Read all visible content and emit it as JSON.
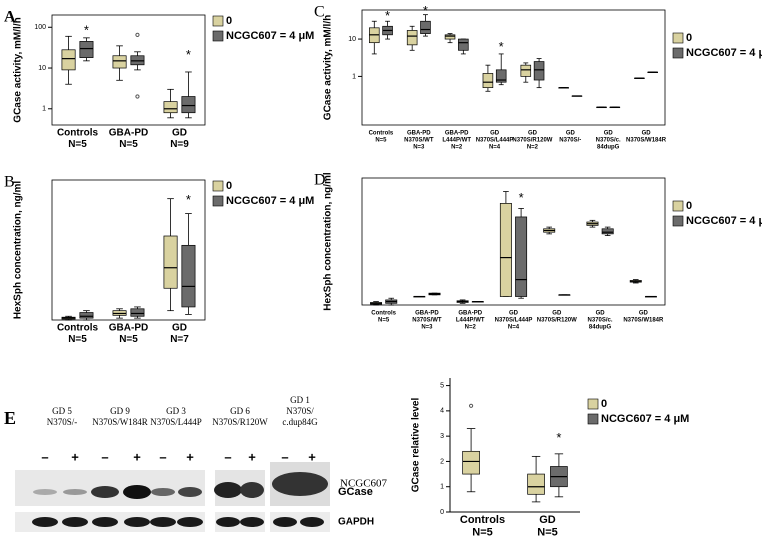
{
  "chart_data": [
    {
      "type": "box",
      "label": "A",
      "y_label": "GCase activity, mM/l/h",
      "log": true,
      "frame": true,
      "legend": "right",
      "ylim": [
        0.4,
        200
      ],
      "yticks": [
        1,
        10,
        100
      ],
      "categories": [
        [
          "Controls",
          "N=5"
        ],
        [
          "GBA-PD",
          "N=5"
        ],
        [
          "GD",
          "N=9"
        ]
      ],
      "series": [
        {
          "name": "0",
          "color": "#d9d2a0",
          "values": [
            [
              4,
              9,
              17,
              28,
              60
            ],
            [
              5,
              10,
              15,
              20,
              35
            ],
            [
              0.6,
              0.8,
              1,
              1.5,
              3
            ]
          ]
        },
        {
          "name": "NCGC607 = 4 μM",
          "color": "#6b6b6b",
          "values": [
            [
              15,
              18,
              30,
              45,
              55
            ],
            [
              9,
              12,
              15,
              20,
              25
            ],
            [
              0.6,
              0.8,
              1.2,
              2,
              8
            ]
          ],
          "outliers": [
            [],
            [
              65,
              2
            ],
            []
          ]
        }
      ],
      "annotations": [
        {
          "text": "*",
          "x": 0,
          "series": 1,
          "y": 80
        },
        {
          "text": "*",
          "x": 2,
          "series": 1,
          "y": 20
        }
      ]
    },
    {
      "type": "box",
      "label": "B",
      "y_label": "HexSph concentration, ng/ml",
      "log": false,
      "frame": true,
      "legend": "right",
      "ylim": [
        0,
        75
      ],
      "categories": [
        [
          "Controls",
          "N=5"
        ],
        [
          "GBA-PD",
          "N=5"
        ],
        [
          "GD",
          "N=7"
        ]
      ],
      "series": [
        {
          "name": "0",
          "color": "#d9d2a0",
          "values": [
            [
              0,
              0.5,
              1,
              1.5,
              2
            ],
            [
              1,
              2.5,
              3.5,
              5,
              6
            ],
            [
              5,
              17,
              28,
              45,
              65
            ]
          ]
        },
        {
          "name": "NCGC607 = 4 μM",
          "color": "#6b6b6b",
          "values": [
            [
              0,
              1,
              2,
              4,
              5
            ],
            [
              1,
              2,
              3.5,
              6,
              7
            ],
            [
              3,
              7,
              18,
              40,
              57
            ]
          ]
        }
      ],
      "annotations": [
        {
          "text": "*",
          "x": 2,
          "series": 1,
          "y": 64
        }
      ]
    },
    {
      "type": "box",
      "label": "C",
      "y_label": "GCase activity, mM/l/h",
      "log": true,
      "frame": true,
      "legend": "right",
      "ylim": [
        0.05,
        60
      ],
      "yticks": [
        1,
        10
      ],
      "categories": [
        [
          "Controls",
          "N=5"
        ],
        [
          "GBA-PD",
          "N370S/WT",
          "N=3"
        ],
        [
          "GBA-PD",
          "L444P/WT",
          "N=2"
        ],
        [
          "GD",
          "N370S/L444P",
          "N=4"
        ],
        [
          "GD",
          "N370S/R120W",
          "N=2"
        ],
        [
          "GD",
          "N370S/-"
        ],
        [
          "GD",
          "N370S/c.",
          "84dupG"
        ],
        [
          "GD",
          "N370S/W184R"
        ]
      ],
      "series": [
        {
          "name": "0",
          "color": "#d9d2a0",
          "values": [
            [
              4,
              8,
              13,
              20,
              30
            ],
            [
              5,
              7,
              12,
              17,
              22
            ],
            [
              8,
              10,
              12,
              13,
              14
            ],
            [
              0.4,
              0.5,
              0.7,
              1.2,
              2
            ],
            [
              0.7,
              1,
              1.5,
              2,
              2.3
            ],
            [
              0.5,
              0.5,
              0.5,
              0.5,
              0.5
            ],
            [
              0.15,
              0.15,
              0.15,
              0.15,
              0.15
            ],
            [
              0.9,
              0.9,
              0.9,
              0.9,
              0.9
            ]
          ]
        },
        {
          "name": "NCGC607 = 4 μM",
          "color": "#6b6b6b",
          "values": [
            [
              10,
              13,
              17,
              22,
              30
            ],
            [
              12,
              14,
              18,
              30,
              45
            ],
            [
              4,
              5,
              8,
              10,
              10
            ],
            [
              0.6,
              0.7,
              0.8,
              1.5,
              4
            ],
            [
              0.5,
              0.8,
              1.5,
              2.5,
              3
            ],
            [
              0.3,
              0.3,
              0.3,
              0.3,
              0.3
            ],
            [
              0.15,
              0.15,
              0.15,
              0.15,
              0.15
            ],
            [
              1.3,
              1.3,
              1.3,
              1.3,
              1.3
            ]
          ]
        }
      ],
      "annotations": [
        {
          "text": "*",
          "x": 0,
          "series": 1,
          "y": 40
        },
        {
          "text": "*",
          "x": 1,
          "series": 1,
          "y": 55
        },
        {
          "text": "*",
          "x": 3,
          "series": 1,
          "y": 6
        }
      ]
    },
    {
      "type": "box",
      "label": "D",
      "y_label": "HexSph concentration, ng/ml",
      "log": false,
      "frame": true,
      "legend": "right",
      "ylim": [
        0,
        75
      ],
      "categories": [
        [
          "Controls",
          "N=5"
        ],
        [
          "GBA-PD",
          "N370S/WT",
          "N=3"
        ],
        [
          "GBA-PD",
          "L444P/WT",
          "N=2"
        ],
        [
          "GD",
          "N370S/L444P",
          "N=4"
        ],
        [
          "GD",
          "N370S/R120W"
        ],
        [
          "GD",
          "N370S/c.",
          "84dupG"
        ],
        [
          "GD",
          "N370S/W184R"
        ]
      ],
      "series": [
        {
          "name": "0",
          "color": "#d9d2a0",
          "values": [
            [
              0,
              0.5,
              1,
              1.5,
              2
            ],
            [
              5,
              5,
              5,
              5,
              5
            ],
            [
              1,
              1.5,
              2,
              2.5,
              3
            ],
            [
              5,
              5,
              28,
              60,
              67
            ],
            [
              42,
              43,
              44,
              45,
              46
            ],
            [
              46,
              47,
              48,
              49,
              50
            ],
            [
              13,
              13.5,
              14,
              14.5,
              15
            ]
          ]
        },
        {
          "name": "NCGC607 = 4 μM",
          "color": "#6b6b6b",
          "values": [
            [
              0,
              1,
              2,
              3,
              4
            ],
            [
              6,
              6,
              6.5,
              7,
              7
            ],
            [
              2,
              2,
              2,
              2,
              2
            ],
            [
              4,
              5,
              15,
              52,
              57
            ],
            [
              6,
              6,
              6,
              6,
              6
            ],
            [
              41,
              42,
              43,
              45,
              46
            ],
            [
              5,
              5,
              5,
              5,
              5
            ]
          ]
        }
      ],
      "annotations": [
        {
          "text": "*",
          "x": 3,
          "series": 1,
          "y": 63
        }
      ]
    },
    {
      "type": "box",
      "y_label": "GCase relative level",
      "log": false,
      "frame": false,
      "legend": "right",
      "ylim": [
        0,
        5.3
      ],
      "yticks": [
        0,
        1,
        2,
        3,
        4,
        5
      ],
      "categories": [
        [
          "Controls",
          "N=5"
        ],
        [
          "GD",
          "N=5"
        ]
      ],
      "series": [
        {
          "name": "0",
          "color": "#d9d2a0",
          "values": [
            [
              0.8,
              1.5,
              2,
              2.4,
              3.3
            ],
            [
              0.4,
              0.7,
              1,
              1.5,
              2.2
            ]
          ],
          "outliers": [
            [
              4.2
            ],
            []
          ]
        },
        {
          "name": "NCGC607 = 4 μM",
          "color": "#6b6b6b",
          "values": [
            null,
            [
              0.6,
              1,
              1.4,
              1.8,
              2.3
            ]
          ]
        }
      ],
      "annotations": [
        {
          "text": "*",
          "x": 1,
          "series": 1,
          "y": 2.9
        }
      ]
    }
  ],
  "blot": {
    "label": "E",
    "lanes": [
      [
        "GD 5",
        "N370S/-"
      ],
      [
        "GD 9",
        "N370S/W184R"
      ],
      [
        "GD 3",
        "N370S/L444P"
      ],
      [
        "GD 6",
        "N370S/R120W"
      ],
      [
        "GD 1",
        "N370S/",
        "c.dup84G"
      ]
    ],
    "signs": [
      "–",
      "+",
      "–",
      "+",
      "–",
      "+",
      "–",
      "+",
      "–",
      "+"
    ],
    "treatment": "NCGC607",
    "bands": [
      "GCase",
      "GAPDH"
    ]
  }
}
